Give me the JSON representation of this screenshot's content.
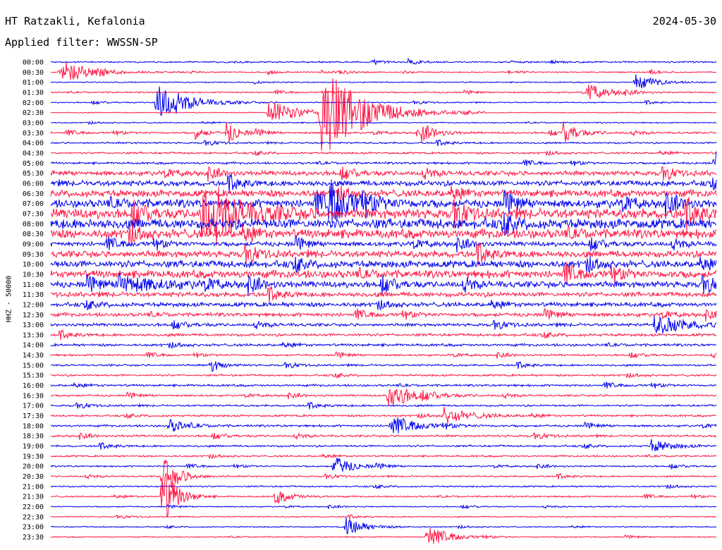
{
  "header": {
    "station": "HT Ratzakli, Kefalonia",
    "date": "2024-05-30",
    "filter_label": "Applied filter: WWSSN-SP"
  },
  "chart_data": {
    "type": "line",
    "title": "HT Ratzakli, Kefalonia",
    "ylabel": "HHZ - 50000",
    "row_times": [
      "00:00",
      "00:30",
      "01:00",
      "01:30",
      "02:00",
      "02:30",
      "03:00",
      "03:30",
      "04:00",
      "04:30",
      "05:00",
      "05:30",
      "06:00",
      "06:30",
      "07:00",
      "07:30",
      "08:00",
      "08:30",
      "09:00",
      "09:30",
      "10:00",
      "10:30",
      "11:00",
      "11:30",
      "12:00",
      "12:30",
      "13:00",
      "13:30",
      "14:00",
      "14:30",
      "15:00",
      "15:30",
      "16:00",
      "16:30",
      "17:00",
      "17:30",
      "18:00",
      "18:30",
      "19:00",
      "19:30",
      "20:00",
      "20:30",
      "21:00",
      "21:30",
      "22:00",
      "22:30",
      "23:00",
      "23:30"
    ],
    "trace_colors": [
      "#0000ee",
      "#ff1744"
    ],
    "row_noise_level": [
      0.8,
      0.6,
      0.6,
      0.7,
      0.6,
      0.5,
      0.6,
      1.0,
      0.9,
      1.0,
      1.1,
      2.4,
      2.8,
      3.6,
      4.2,
      5.0,
      5.2,
      4.6,
      2.4,
      3.4,
      3.6,
      3.9,
      3.2,
      2.4,
      2.2,
      1.9,
      1.6,
      1.4,
      1.3,
      1.0,
      1.0,
      1.0,
      1.1,
      1.0,
      1.0,
      1.0,
      1.1,
      1.1,
      1.0,
      0.9,
      0.8,
      0.8,
      0.8,
      0.8,
      0.6,
      0.6,
      0.6,
      0.6
    ],
    "events": [
      {
        "row": 1,
        "minute": 0.5,
        "amp": 16,
        "dur": 2.2
      },
      {
        "row": 4,
        "minute": 4.7,
        "amp": 30,
        "dur": 2.2
      },
      {
        "row": 3,
        "minute": 24.2,
        "amp": 12,
        "dur": 1.6
      },
      {
        "row": 2,
        "minute": 26.3,
        "amp": 12,
        "dur": 1.5
      },
      {
        "row": 1,
        "minute": 13.0,
        "amp": 4,
        "dur": 0.8
      },
      {
        "row": 5,
        "minute": 9.8,
        "amp": 20,
        "dur": 2.0
      },
      {
        "row": 5,
        "minute": 12.1,
        "amp": 75,
        "dur": 3.0
      },
      {
        "row": 7,
        "minute": 6.5,
        "amp": 9,
        "dur": 0.8
      },
      {
        "row": 7,
        "minute": 7.9,
        "amp": 15,
        "dur": 1.0
      },
      {
        "row": 7,
        "minute": 16.7,
        "amp": 12,
        "dur": 1.2
      },
      {
        "row": 7,
        "minute": 23.1,
        "amp": 14,
        "dur": 1.2
      },
      {
        "row": 10,
        "minute": 30.0,
        "amp": 14,
        "dur": 1.5
      },
      {
        "row": 15,
        "minute": 6.8,
        "amp": 40,
        "dur": 3.0
      },
      {
        "row": 14,
        "minute": 12.5,
        "amp": 30,
        "dur": 2.0
      },
      {
        "row": 22,
        "minute": 3.0,
        "amp": 14,
        "dur": 3.0
      },
      {
        "row": 26,
        "minute": 27.2,
        "amp": 14,
        "dur": 2.5
      },
      {
        "row": 30,
        "minute": 7.2,
        "amp": 10,
        "dur": 0.8
      },
      {
        "row": 33,
        "minute": 15.2,
        "amp": 18,
        "dur": 2.0
      },
      {
        "row": 35,
        "minute": 17.7,
        "amp": 12,
        "dur": 2.0
      },
      {
        "row": 36,
        "minute": 15.3,
        "amp": 12,
        "dur": 2.0
      },
      {
        "row": 36,
        "minute": 5.3,
        "amp": 10,
        "dur": 1.2
      },
      {
        "row": 38,
        "minute": 27.0,
        "amp": 10,
        "dur": 1.5
      },
      {
        "row": 40,
        "minute": 12.7,
        "amp": 16,
        "dur": 1.3
      },
      {
        "row": 43,
        "minute": 10.1,
        "amp": 10,
        "dur": 1.3
      },
      {
        "row": 46,
        "minute": 13.3,
        "amp": 14,
        "dur": 1.4
      },
      {
        "row": 47,
        "minute": 16.9,
        "amp": 16,
        "dur": 1.6
      },
      {
        "row": 41,
        "minute": 5.0,
        "amp": 30,
        "dur": 1.2
      },
      {
        "row": 43,
        "minute": 5.0,
        "amp": 50,
        "dur": 1.0
      }
    ]
  }
}
